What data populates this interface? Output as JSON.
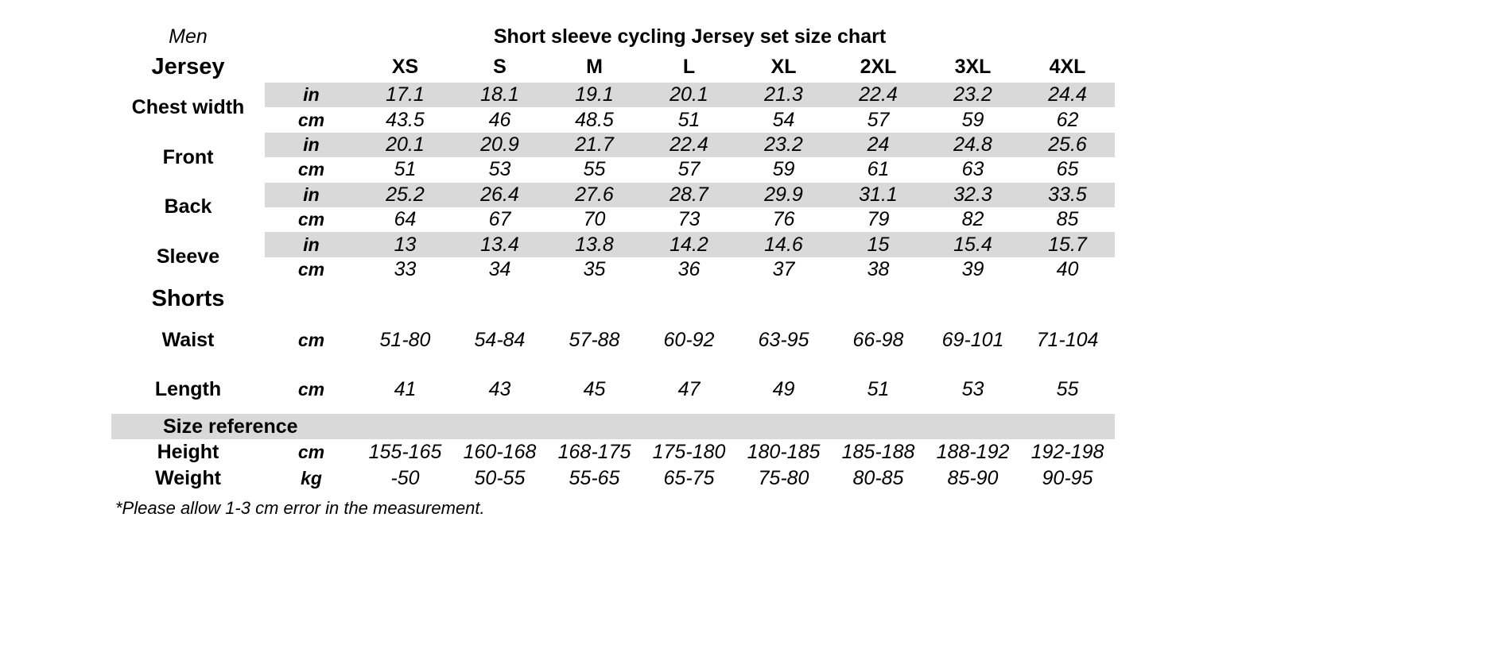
{
  "page": {
    "gender_label": "Men",
    "footnote": "*Please allow 1-3 cm error in the measurement."
  },
  "colors": {
    "band": "#d9d9d9",
    "text": "#000000",
    "background": "#ffffff"
  },
  "chart_data": {
    "type": "table",
    "title": "Short sleeve cycling Jersey set size chart",
    "columns": [
      "XS",
      "S",
      "M",
      "L",
      "XL",
      "2XL",
      "3XL",
      "4XL"
    ],
    "sections": [
      {
        "label": "Jersey",
        "measurements": [
          {
            "label": "Chest width",
            "rows": [
              {
                "unit": "in",
                "shaded": true,
                "values": [
                  "17.1",
                  "18.1",
                  "19.1",
                  "20.1",
                  "21.3",
                  "22.4",
                  "23.2",
                  "24.4"
                ]
              },
              {
                "unit": "cm",
                "shaded": false,
                "values": [
                  "43.5",
                  "46",
                  "48.5",
                  "51",
                  "54",
                  "57",
                  "59",
                  "62"
                ]
              }
            ]
          },
          {
            "label": "Front",
            "rows": [
              {
                "unit": "in",
                "shaded": true,
                "values": [
                  "20.1",
                  "20.9",
                  "21.7",
                  "22.4",
                  "23.2",
                  "24",
                  "24.8",
                  "25.6"
                ]
              },
              {
                "unit": "cm",
                "shaded": false,
                "values": [
                  "51",
                  "53",
                  "55",
                  "57",
                  "59",
                  "61",
                  "63",
                  "65"
                ]
              }
            ]
          },
          {
            "label": "Back",
            "rows": [
              {
                "unit": "in",
                "shaded": true,
                "values": [
                  "25.2",
                  "26.4",
                  "27.6",
                  "28.7",
                  "29.9",
                  "31.1",
                  "32.3",
                  "33.5"
                ]
              },
              {
                "unit": "cm",
                "shaded": false,
                "values": [
                  "64",
                  "67",
                  "70",
                  "73",
                  "76",
                  "79",
                  "82",
                  "85"
                ]
              }
            ]
          },
          {
            "label": "Sleeve",
            "rows": [
              {
                "unit": "in",
                "shaded": true,
                "values": [
                  "13",
                  "13.4",
                  "13.8",
                  "14.2",
                  "14.6",
                  "15",
                  "15.4",
                  "15.7"
                ]
              },
              {
                "unit": "cm",
                "shaded": false,
                "values": [
                  "33",
                  "34",
                  "35",
                  "36",
                  "37",
                  "38",
                  "39",
                  "40"
                ]
              }
            ]
          }
        ]
      },
      {
        "label": "Shorts",
        "measurements": [
          {
            "label": "Waist",
            "rows": [
              {
                "unit": "cm",
                "shaded": false,
                "values": [
                  "51-80",
                  "54-84",
                  "57-88",
                  "60-92",
                  "63-95",
                  "66-98",
                  "69-101",
                  "71-104"
                ]
              }
            ]
          },
          {
            "label": "Length",
            "rows": [
              {
                "unit": "cm",
                "shaded": false,
                "values": [
                  "41",
                  "43",
                  "45",
                  "47",
                  "49",
                  "51",
                  "53",
                  "55"
                ]
              }
            ]
          }
        ]
      },
      {
        "label": "Size reference",
        "shaded_header": true,
        "measurements": [
          {
            "label": "Height",
            "rows": [
              {
                "unit": "cm",
                "shaded": false,
                "values": [
                  "155-165",
                  "160-168",
                  "168-175",
                  "175-180",
                  "180-185",
                  "185-188",
                  "188-192",
                  "192-198"
                ]
              }
            ]
          },
          {
            "label": "Weight",
            "rows": [
              {
                "unit": "kg",
                "shaded": false,
                "values": [
                  "-50",
                  "50-55",
                  "55-65",
                  "65-75",
                  "75-80",
                  "80-85",
                  "85-90",
                  "90-95"
                ]
              }
            ]
          }
        ]
      }
    ]
  }
}
